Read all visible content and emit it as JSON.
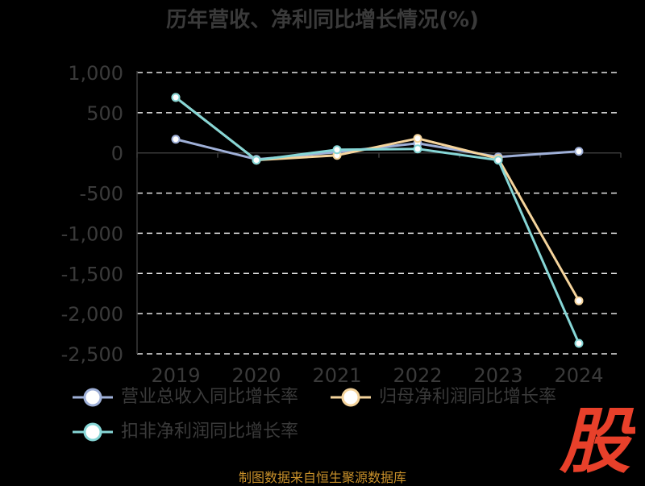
{
  "chart_data": {
    "type": "line",
    "title": "历年营收、净利同比增长情况(%)",
    "categories": [
      "2019",
      "2020",
      "2021",
      "2022",
      "2023",
      "2024"
    ],
    "ylim": [
      -2500,
      1000
    ],
    "yticks": [
      1000,
      500,
      0,
      -500,
      -1000,
      -1500,
      -2000,
      -2500
    ],
    "ytick_labels": [
      "1,000",
      "500",
      "0",
      "-500",
      "-1,000",
      "-1,500",
      "-2,000",
      "-2,500"
    ],
    "grid": true,
    "legend_position": "bottom",
    "series": [
      {
        "name": "营业总收入同比增长率",
        "color": "#9fb0d8",
        "values": [
          170,
          -80,
          10,
          120,
          -50,
          20
        ]
      },
      {
        "name": "归母净利润同比增长率",
        "color": "#f5d49c",
        "values": [
          690,
          -90,
          -30,
          180,
          -70,
          -1840
        ]
      },
      {
        "name": "扣非净利润同比增长率",
        "color": "#86d6d6",
        "values": [
          690,
          -90,
          40,
          50,
          -90,
          -2370
        ]
      }
    ]
  },
  "footer": {
    "source": "制图数据来自恒生聚源数据库"
  },
  "watermark": {
    "glyph": "股",
    "color": "#e8402a"
  }
}
